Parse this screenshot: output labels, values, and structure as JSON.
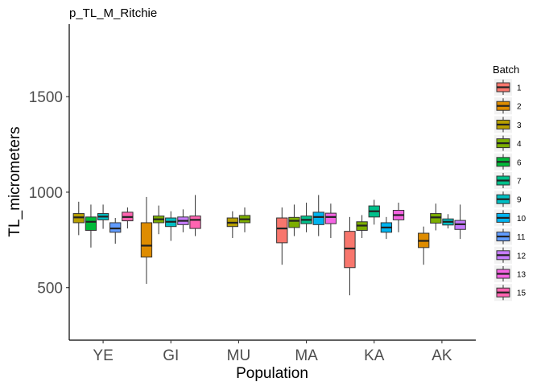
{
  "chart_data": {
    "type": "box",
    "title": "p_TL_M_Ritchie",
    "xlabel": "Population",
    "ylabel": "TL_micrometers",
    "ylim": [
      225,
      1880
    ],
    "y_ticks": [
      500,
      1000,
      1500
    ],
    "categories": [
      "YE",
      "GI",
      "MU",
      "MA",
      "KA",
      "AK"
    ],
    "legend": {
      "title": "Batch",
      "position": "right",
      "entries": [
        "1",
        "2",
        "3",
        "4",
        "6",
        "7",
        "9",
        "10",
        "11",
        "12",
        "13",
        "15"
      ]
    },
    "batch_colors": {
      "1": "#F8766D",
      "2": "#DE8C00",
      "3": "#B79F00",
      "4": "#7CAE00",
      "6": "#00BA38",
      "7": "#00C08B",
      "9": "#00BFC4",
      "10": "#00B4F0",
      "11": "#619CFF",
      "12": "#C77CFF",
      "13": "#F564E3",
      "15": "#FF64B0"
    },
    "groups": [
      {
        "population": "YE",
        "boxes": [
          {
            "batch": "3",
            "min": 775,
            "q1": 840,
            "median": 868,
            "q3": 888,
            "max": 950
          },
          {
            "batch": "6",
            "min": 710,
            "q1": 800,
            "median": 845,
            "q3": 870,
            "max": 935
          },
          {
            "batch": "9",
            "min": 808,
            "q1": 855,
            "median": 872,
            "q3": 888,
            "max": 935
          },
          {
            "batch": "11",
            "min": 730,
            "q1": 790,
            "median": 810,
            "q3": 840,
            "max": 865
          },
          {
            "batch": "15",
            "min": 810,
            "q1": 850,
            "median": 870,
            "q3": 895,
            "max": 920
          }
        ]
      },
      {
        "population": "GI",
        "boxes": [
          {
            "batch": "2",
            "min": 520,
            "q1": 660,
            "median": 720,
            "q3": 840,
            "max": 975
          },
          {
            "batch": "4",
            "min": 780,
            "q1": 840,
            "median": 858,
            "q3": 875,
            "max": 930
          },
          {
            "batch": "9",
            "min": 745,
            "q1": 820,
            "median": 845,
            "q3": 865,
            "max": 900
          },
          {
            "batch": "12",
            "min": 790,
            "q1": 830,
            "median": 850,
            "q3": 870,
            "max": 910
          },
          {
            "batch": "15",
            "min": 770,
            "q1": 810,
            "median": 855,
            "q3": 875,
            "max": 985
          }
        ]
      },
      {
        "population": "MU",
        "boxes": [
          {
            "batch": "3",
            "min": 760,
            "q1": 820,
            "median": 840,
            "q3": 865,
            "max": 900
          },
          {
            "batch": "4",
            "min": 790,
            "q1": 840,
            "median": 858,
            "q3": 878,
            "max": 920
          }
        ]
      },
      {
        "population": "MA",
        "boxes": [
          {
            "batch": "1",
            "min": 620,
            "q1": 735,
            "median": 810,
            "q3": 865,
            "max": 920
          },
          {
            "batch": "4",
            "min": 770,
            "q1": 815,
            "median": 850,
            "q3": 868,
            "max": 935
          },
          {
            "batch": "7",
            "min": 790,
            "q1": 835,
            "median": 855,
            "q3": 875,
            "max": 945
          },
          {
            "batch": "10",
            "min": 770,
            "q1": 830,
            "median": 870,
            "q3": 895,
            "max": 985
          },
          {
            "batch": "13",
            "min": 760,
            "q1": 835,
            "median": 870,
            "q3": 890,
            "max": 940
          }
        ]
      },
      {
        "population": "KA",
        "boxes": [
          {
            "batch": "1",
            "min": 460,
            "q1": 605,
            "median": 705,
            "q3": 795,
            "max": 870
          },
          {
            "batch": "4",
            "min": 760,
            "q1": 800,
            "median": 825,
            "q3": 845,
            "max": 880
          },
          {
            "batch": "7",
            "min": 830,
            "q1": 870,
            "median": 900,
            "q3": 928,
            "max": 960
          },
          {
            "batch": "10",
            "min": 755,
            "q1": 790,
            "median": 815,
            "q3": 840,
            "max": 870
          },
          {
            "batch": "13",
            "min": 790,
            "q1": 855,
            "median": 880,
            "q3": 905,
            "max": 945
          }
        ]
      },
      {
        "population": "AK",
        "boxes": [
          {
            "batch": "2",
            "min": 620,
            "q1": 710,
            "median": 745,
            "q3": 785,
            "max": 820
          },
          {
            "batch": "4",
            "min": 800,
            "q1": 838,
            "median": 868,
            "q3": 888,
            "max": 940
          },
          {
            "batch": "9",
            "min": 810,
            "q1": 828,
            "median": 845,
            "q3": 860,
            "max": 885
          },
          {
            "batch": "12",
            "min": 755,
            "q1": 805,
            "median": 832,
            "q3": 852,
            "max": 935
          }
        ]
      }
    ]
  }
}
